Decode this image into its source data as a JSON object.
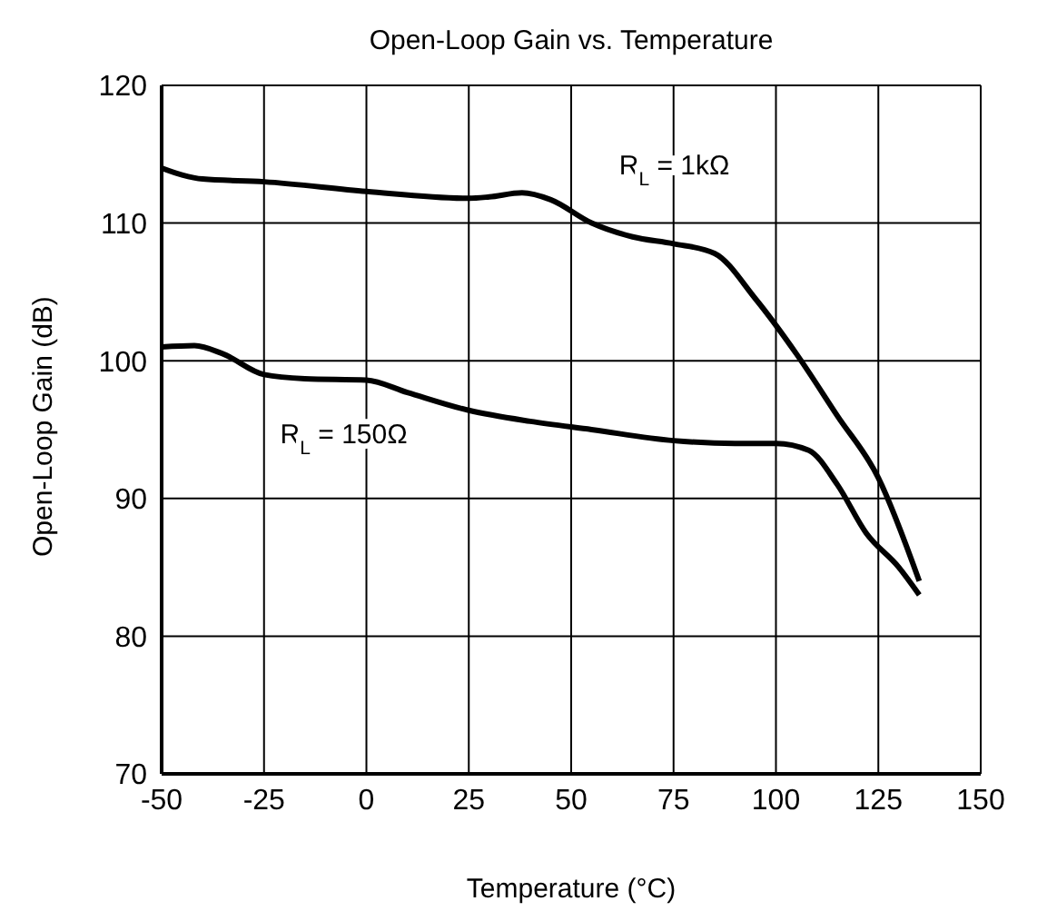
{
  "chart_data": {
    "type": "line",
    "title": "Open-Loop Gain vs. Temperature",
    "xlabel": "Temperature (°C)",
    "ylabel": "Open-Loop Gain (dB)",
    "xlim": [
      -50,
      150
    ],
    "xticks": [
      -50,
      -25,
      0,
      25,
      50,
      75,
      100,
      125,
      150
    ],
    "ylim": [
      70,
      120
    ],
    "yticks": [
      70,
      80,
      90,
      100,
      110,
      120
    ],
    "grid": true,
    "legend": false,
    "marker": "none",
    "line_style": "solid",
    "series": [
      {
        "name": "R$_{L}$ = 1kΩ",
        "color": "#000000",
        "x": [
          -50,
          -45,
          -40,
          -25,
          0,
          25,
          30,
          38,
          45,
          55,
          65,
          75,
          85,
          95,
          105,
          115,
          125,
          135
        ],
        "values": [
          114,
          113.5,
          113.2,
          113,
          112.3,
          111.8,
          111.9,
          112.2,
          111.7,
          110,
          109,
          108.5,
          107.8,
          104.5,
          100.5,
          96,
          91.5,
          84
        ]
      },
      {
        "name": "R$_{L}$ = 150Ω",
        "color": "#000000",
        "x": [
          -50,
          -42,
          -35,
          -25,
          -15,
          0,
          10,
          25,
          40,
          55,
          75,
          90,
          100,
          108,
          115,
          122,
          130,
          135
        ],
        "values": [
          101,
          101.1,
          100.5,
          99,
          98.7,
          98.6,
          97.7,
          96.4,
          95.6,
          95,
          94.2,
          94,
          94,
          93.5,
          91,
          87.5,
          85,
          83
        ]
      }
    ]
  }
}
